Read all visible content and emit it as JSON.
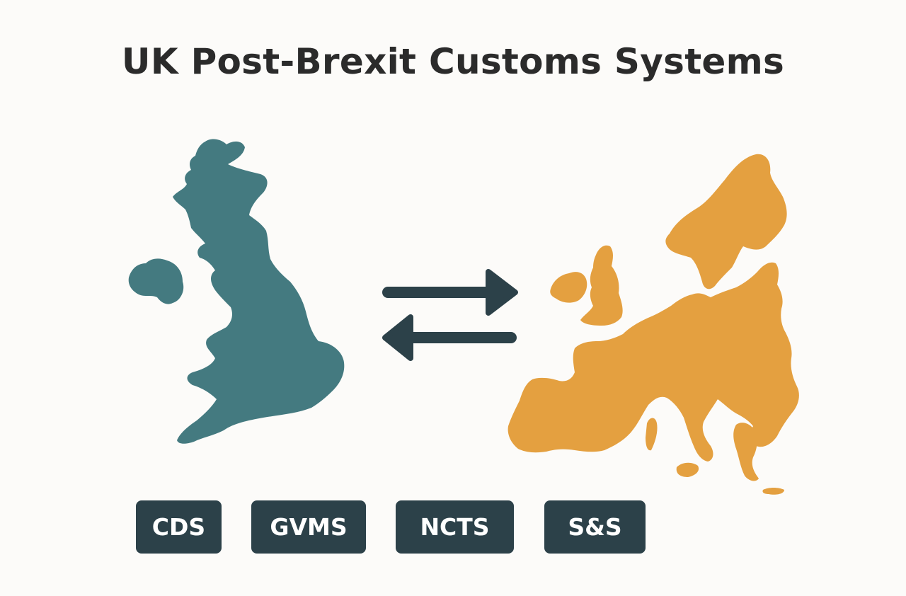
{
  "title": "UK Post-Brexit Customs Systems",
  "colors": {
    "background": "#fcfbf9",
    "uk_map": "#447a80",
    "eu_map": "#e4a040",
    "arrows": "#2c4149",
    "tag_background": "#2c4149",
    "tag_text": "#ffffff"
  },
  "icons": {
    "uk": "uk-map-icon",
    "eu": "europe-map-icon",
    "exchange": "bidirectional-arrows-icon"
  },
  "systems": [
    {
      "label": "CDS"
    },
    {
      "label": "GVMS"
    },
    {
      "label": "NCTS"
    },
    {
      "label": "S&S"
    }
  ]
}
